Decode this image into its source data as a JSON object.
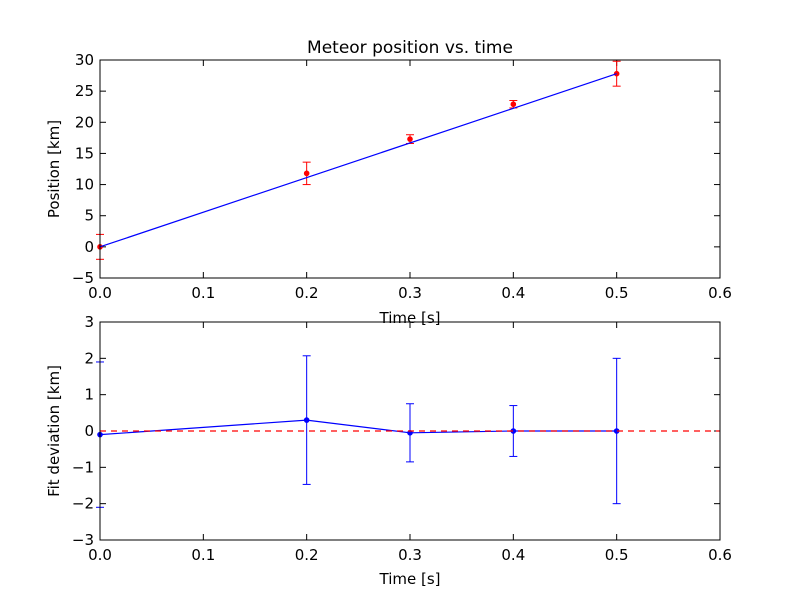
{
  "chart_data": [
    {
      "type": "line",
      "title": "Meteor position vs. time",
      "xlabel": "Time [s]",
      "ylabel": "Position [km]",
      "xlim": [
        0.0,
        0.6
      ],
      "ylim": [
        -5,
        30
      ],
      "xticks": [
        "0.0",
        "0.1",
        "0.2",
        "0.3",
        "0.4",
        "0.5",
        "0.6"
      ],
      "yticks": [
        "−5",
        "0",
        "5",
        "10",
        "15",
        "20",
        "25",
        "30"
      ],
      "grid": false,
      "series": [
        {
          "kind": "errorbar",
          "color": "#ff0000",
          "x": [
            0.0,
            0.2,
            0.3,
            0.4,
            0.5
          ],
          "y": [
            0.0,
            11.8,
            17.3,
            22.9,
            27.8
          ],
          "yerr": [
            2.0,
            1.8,
            0.7,
            0.6,
            2.0
          ]
        },
        {
          "kind": "line",
          "color": "#0000ff",
          "x": [
            0.0,
            0.5
          ],
          "y": [
            0.0,
            27.8
          ]
        }
      ]
    },
    {
      "type": "line",
      "title": "",
      "xlabel": "Time [s]",
      "ylabel": "Fit deviation [km]",
      "xlim": [
        0.0,
        0.6
      ],
      "ylim": [
        -3,
        3
      ],
      "xticks": [
        "0.0",
        "0.1",
        "0.2",
        "0.3",
        "0.4",
        "0.5",
        "0.6"
      ],
      "yticks": [
        "−3",
        "−2",
        "−1",
        "0",
        "1",
        "2",
        "3"
      ],
      "grid": false,
      "series": [
        {
          "kind": "errorbar",
          "color": "#0000ff",
          "x": [
            0.0,
            0.2,
            0.3,
            0.4,
            0.5
          ],
          "y": [
            -0.1,
            0.3,
            -0.05,
            0.0,
            0.0
          ],
          "yerr": [
            2.0,
            1.77,
            0.8,
            0.7,
            2.0
          ]
        },
        {
          "kind": "reference",
          "color": "#ff0000",
          "dash": true,
          "x": [
            0.0,
            0.6
          ],
          "y": [
            0.0,
            0.0
          ]
        }
      ]
    }
  ]
}
